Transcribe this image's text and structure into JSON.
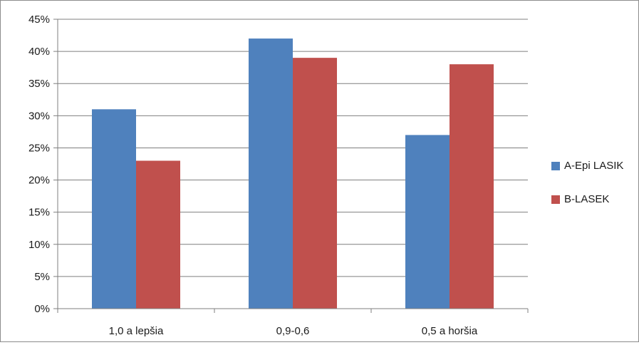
{
  "chart_data": {
    "type": "bar",
    "title": "",
    "xlabel": "",
    "ylabel": "",
    "categories": [
      "1,0 a lepšia",
      "0,9-0,6",
      "0,5 a horšia"
    ],
    "series": [
      {
        "name": "A-Epi LASIK",
        "color": "#4f81bd",
        "values": [
          31,
          42,
          27
        ]
      },
      {
        "name": "B-LASEK",
        "color": "#c0504d",
        "values": [
          23,
          39,
          38
        ]
      }
    ],
    "ylim": [
      0,
      45
    ],
    "yticks": [
      "0%",
      "5%",
      "10%",
      "15%",
      "20%",
      "25%",
      "30%",
      "35%",
      "40%",
      "45%"
    ],
    "value_unit": "%",
    "grid": true,
    "legend_position": "right"
  }
}
